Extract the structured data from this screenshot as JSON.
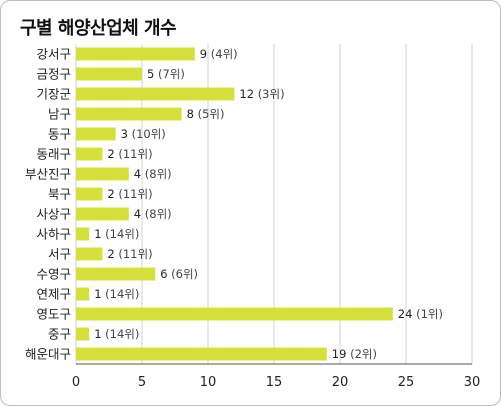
{
  "chart_data": {
    "type": "bar",
    "orientation": "horizontal",
    "title": "구별 해양산업체 개수",
    "categories": [
      "강서구",
      "금정구",
      "기장군",
      "남구",
      "동구",
      "동래구",
      "부산진구",
      "북구",
      "사상구",
      "사하구",
      "서구",
      "수영구",
      "연제구",
      "영도구",
      "중구",
      "해운대구"
    ],
    "values": [
      9,
      5,
      12,
      8,
      3,
      2,
      4,
      2,
      4,
      1,
      2,
      6,
      1,
      24,
      1,
      19
    ],
    "data_labels": [
      "(4위)",
      "(7위)",
      "(3위)",
      "(5위)",
      "(10위)",
      "(11위)",
      "(8위)",
      "(11위)",
      "(8위)",
      "(14위)",
      "(11위)",
      "(6위)",
      "(14위)",
      "(1위)",
      "(14위)",
      "(2위)"
    ],
    "xlim": [
      0,
      30
    ],
    "xticks": [
      "0",
      "5",
      "10",
      "15",
      "20",
      "25",
      "30"
    ],
    "grid": true,
    "bar_color": "#d4e03c",
    "grid_color": "#d0d0d0"
  }
}
